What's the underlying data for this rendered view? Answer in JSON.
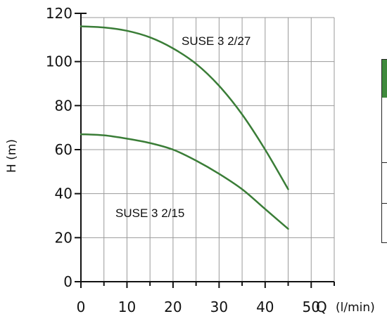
{
  "chart_data": {
    "type": "line",
    "title": "",
    "xlabel": "Q",
    "xunit": "(l/min)",
    "ylabel": "H (m)",
    "xlim": [
      0,
      55
    ],
    "ylim": [
      0,
      120
    ],
    "x_ticks": [
      0,
      10,
      20,
      30,
      40,
      50
    ],
    "y_ticks": [
      0,
      20,
      40,
      60,
      80,
      100,
      120
    ],
    "grid": true,
    "line_color": "#3a7d37",
    "series": [
      {
        "name": "SUSE 3 2/27",
        "x": [
          0,
          5,
          10,
          15,
          20,
          25,
          30,
          35,
          40,
          45
        ],
        "y": [
          116,
          115.5,
          114,
          111,
          106,
          99,
          89,
          76,
          60,
          42
        ]
      },
      {
        "name": "SUSE 3 2/15",
        "x": [
          0,
          5,
          10,
          15,
          20,
          25,
          30,
          35,
          40,
          45
        ],
        "y": [
          67,
          66.5,
          65,
          63,
          60,
          55,
          49,
          42,
          33,
          24
        ]
      }
    ]
  },
  "side_table": {
    "header_color": "#3f8a3c"
  }
}
